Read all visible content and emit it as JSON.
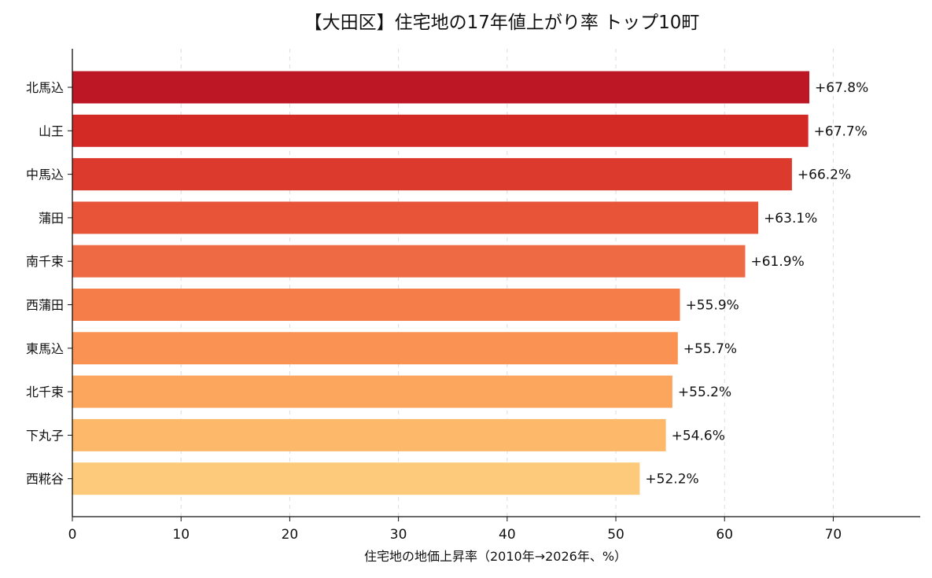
{
  "chart_data": {
    "type": "bar",
    "orientation": "horizontal",
    "title": "【大田区】住宅地の17年値上がり率 トップ10町",
    "xlabel": "住宅地の地価上昇率（2010年→2026年、%）",
    "ylabel": "",
    "xlim": [
      0,
      78
    ],
    "xticks": [
      0,
      10,
      20,
      30,
      40,
      50,
      60,
      70
    ],
    "grid": "vertical dashed",
    "categories": [
      "北馬込",
      "山王",
      "中馬込",
      "蒲田",
      "南千束",
      "西蒲田",
      "東馬込",
      "北千束",
      "下丸子",
      "西糀谷"
    ],
    "values": [
      67.8,
      67.7,
      66.2,
      63.1,
      61.9,
      55.9,
      55.7,
      55.2,
      54.6,
      52.2
    ],
    "value_labels": [
      "+67.8%",
      "+67.7%",
      "+66.2%",
      "+63.1%",
      "+61.9%",
      "+55.9%",
      "+55.7%",
      "+55.2%",
      "+54.6%",
      "+52.2%"
    ],
    "colors": [
      "#bd1726",
      "#d42a26",
      "#dc3a2c",
      "#e75437",
      "#ee6a45",
      "#f47d4a",
      "#f99253",
      "#fca55d",
      "#fdb869",
      "#fdc97a"
    ]
  }
}
